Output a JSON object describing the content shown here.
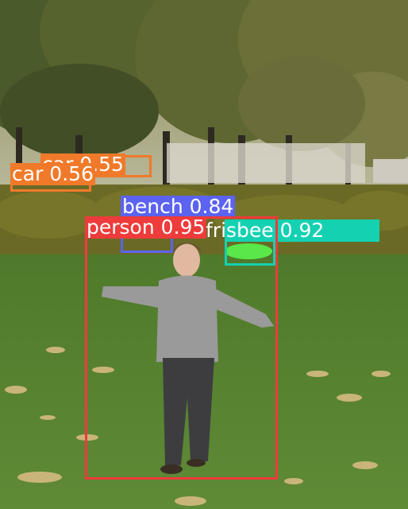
{
  "image": {
    "description_hidden": false
  },
  "colors": {
    "person": "#ee3b3b",
    "bench": "#5b63f0",
    "frisbee": "#14d1b2",
    "car": "#f07a2a"
  },
  "detections": [
    {
      "id": "car-back",
      "class": "car",
      "label": "car 0.55",
      "color": "#f07a2a"
    },
    {
      "id": "car-front",
      "class": "car",
      "label": "car 0.56",
      "color": "#f07a2a"
    },
    {
      "id": "bench",
      "class": "bench",
      "label": "bench 0.84",
      "color": "#5b63f0"
    },
    {
      "id": "frisbee",
      "class": "frisbee",
      "label": "frisbee 0.92",
      "color": "#14d1b2"
    },
    {
      "id": "person",
      "class": "person",
      "label": "person 0.95",
      "color": "#ee3b3b"
    }
  ]
}
